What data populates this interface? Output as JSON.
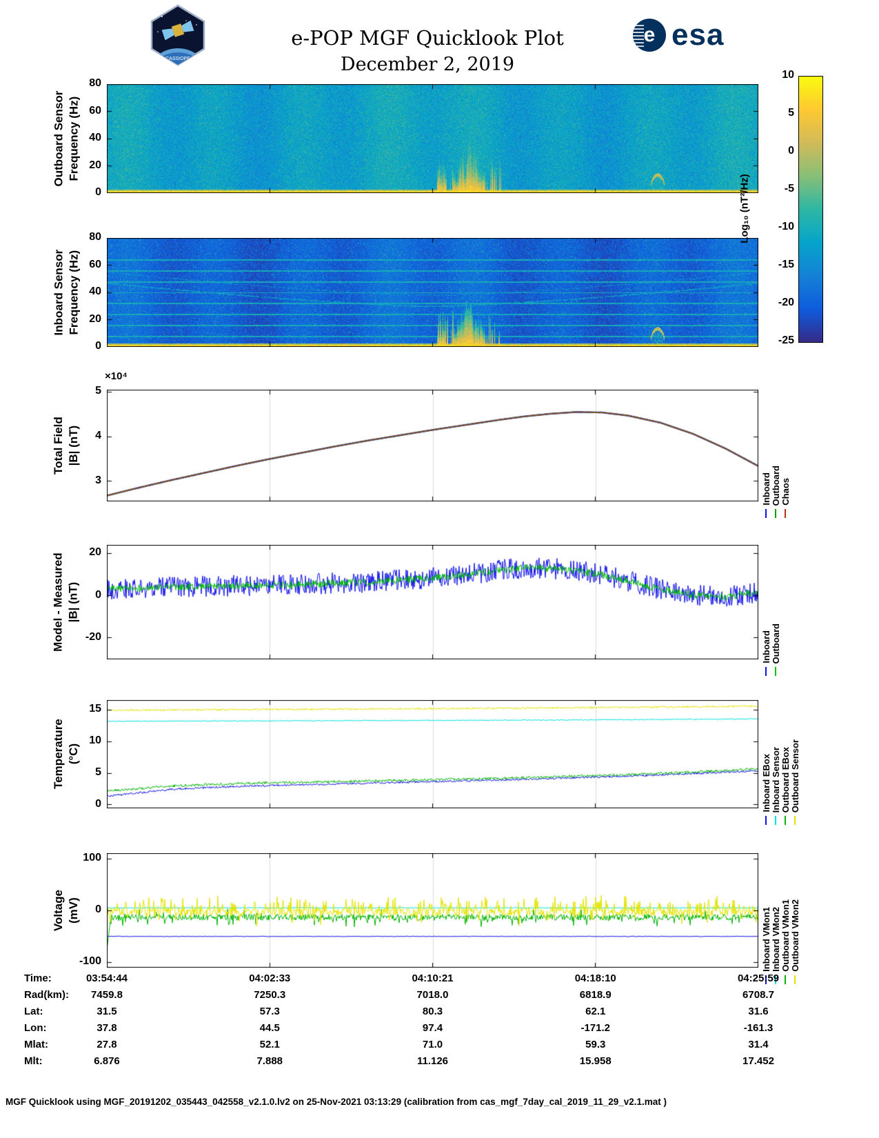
{
  "header": {
    "title": "e-POP MGF Quicklook Plot",
    "date": "December 2, 2019",
    "mission_logo_text": "CASSIOPE",
    "esa_logo_text": "esa",
    "esa_emblem_letter": "e"
  },
  "time_axis": {
    "tick_labels": [
      "03:54:44",
      "04:02:33",
      "04:10:21",
      "04:18:10",
      "04:25:59"
    ]
  },
  "colorbar": {
    "label": "Log₁₀ (nT²/Hz)",
    "ticks": [
      10,
      5,
      0,
      -5,
      -10,
      -15,
      -20,
      -25
    ],
    "colormap": "parula",
    "min": -25,
    "max": 10
  },
  "chart_data": [
    {
      "type": "heatmap",
      "name": "outboard_spectrogram",
      "ylabel": [
        "Outboard Sensor",
        "Frequency (Hz)"
      ],
      "ylim": [
        0,
        80
      ],
      "yticks": [
        0,
        20,
        40,
        60,
        80
      ],
      "value_scale": {
        "label": "Log₁₀ (nT²/Hz)",
        "min": -25,
        "max": 10
      },
      "features": {
        "background_db": -14,
        "low_freq_band_max_hz": 3,
        "burst_time_frac": 0.556,
        "burst_max_freq_hz": 45,
        "secondary_burst_frac": 0.513,
        "small_feature_frac": 0.845
      }
    },
    {
      "type": "heatmap",
      "name": "inboard_spectrogram",
      "ylabel": [
        "Inboard Sensor",
        "Frequency (Hz)"
      ],
      "ylim": [
        0,
        80
      ],
      "yticks": [
        0,
        20,
        40,
        60,
        80
      ],
      "value_scale": {
        "label": "Log₁₀ (nT²/Hz)",
        "min": -25,
        "max": 10
      },
      "interference_lines_hz": [
        8,
        16,
        24,
        32,
        40,
        48,
        56,
        64
      ],
      "features": {
        "background_db": -21,
        "low_freq_band_max_hz": 3,
        "burst_time_frac": 0.556,
        "burst_max_freq_hz": 45,
        "secondary_burst_frac": 0.513,
        "small_feature_frac": 0.845
      }
    },
    {
      "type": "line",
      "name": "total_field",
      "ylabel": [
        "Total Field",
        "|B| (nT)"
      ],
      "scale_label": "×10⁴",
      "y_units": "×10⁴ nT",
      "ylim": [
        2.55,
        5.05
      ],
      "yticks": [
        3,
        4,
        5
      ],
      "x": [
        0,
        0.05,
        0.1,
        0.15,
        0.2,
        0.25,
        0.3,
        0.35,
        0.4,
        0.45,
        0.5,
        0.55,
        0.6,
        0.64,
        0.68,
        0.72,
        0.76,
        0.8,
        0.85,
        0.9,
        0.95,
        1
      ],
      "y": [
        2.68,
        2.86,
        3.03,
        3.19,
        3.35,
        3.5,
        3.64,
        3.78,
        3.91,
        4.03,
        4.15,
        4.26,
        4.37,
        4.45,
        4.51,
        4.55,
        4.54,
        4.47,
        4.31,
        4.06,
        3.73,
        3.34
      ],
      "series": [
        {
          "name": "Inboard",
          "color": "#0f0fe8"
        },
        {
          "name": "Outboard",
          "color": "#00a000"
        },
        {
          "name": "Chaos",
          "color": "#b43214"
        }
      ],
      "note": "all three series overlap"
    },
    {
      "type": "line",
      "name": "model_minus_measured",
      "ylabel": [
        "Model - Measured",
        "|B| (nT)"
      ],
      "ylim": [
        -30,
        24
      ],
      "yticks": [
        -20,
        0,
        20
      ],
      "x": [
        0,
        0.08,
        0.16,
        0.24,
        0.32,
        0.4,
        0.48,
        0.54,
        0.6,
        0.65,
        0.7,
        0.75,
        0.8,
        0.85,
        0.9,
        0.95,
        1
      ],
      "y": [
        3,
        4,
        4.6,
        5,
        5.6,
        6.5,
        8,
        9.5,
        12,
        13.2,
        12.6,
        10.5,
        7,
        3,
        0.3,
        -0.6,
        1.8
      ],
      "series": [
        {
          "name": "Inboard",
          "color": "#0f0fe8",
          "noise_amp": 5
        },
        {
          "name": "Outboard",
          "color": "#00c000",
          "noise_amp": 1.7
        }
      ]
    },
    {
      "type": "line",
      "name": "temperature",
      "ylabel": [
        "Temperature",
        "(°C)"
      ],
      "ylim": [
        -0.5,
        16.5
      ],
      "yticks": [
        0,
        5,
        10,
        15
      ],
      "series": [
        {
          "name": "Inboard EBox",
          "color": "#0f0fe8",
          "noise_amp": 0.15,
          "x": [
            0,
            0.1,
            0.2,
            0.3,
            0.4,
            0.5,
            0.6,
            0.7,
            0.8,
            0.9,
            1
          ],
          "y": [
            1.4,
            2.5,
            2.95,
            3.2,
            3.45,
            3.7,
            3.95,
            4.25,
            4.55,
            4.95,
            5.4
          ]
        },
        {
          "name": "Inboard Sensor",
          "color": "#00e0e0",
          "noise_amp": 0.07,
          "x": [
            0,
            0.1,
            0.2,
            0.3,
            0.4,
            0.5,
            0.6,
            0.7,
            0.8,
            0.9,
            1
          ],
          "y": [
            13.15,
            13.2,
            13.22,
            13.25,
            13.28,
            13.3,
            13.33,
            13.37,
            13.42,
            13.47,
            13.55
          ]
        },
        {
          "name": "Outboard EBox",
          "color": "#00b400",
          "noise_amp": 0.2,
          "x": [
            0,
            0.1,
            0.2,
            0.3,
            0.4,
            0.5,
            0.6,
            0.7,
            0.8,
            0.9,
            1
          ],
          "y": [
            2.2,
            3.0,
            3.4,
            3.6,
            3.8,
            4.0,
            4.2,
            4.5,
            4.8,
            5.2,
            5.7
          ]
        },
        {
          "name": "Outboard Sensor",
          "color": "#e3e300",
          "noise_amp": 0.15,
          "x": [
            0,
            0.1,
            0.2,
            0.3,
            0.4,
            0.5,
            0.6,
            0.7,
            0.8,
            0.9,
            1
          ],
          "y": [
            14.85,
            14.95,
            15.0,
            15.05,
            15.1,
            15.15,
            15.2,
            15.28,
            15.35,
            15.45,
            15.55
          ]
        }
      ]
    },
    {
      "type": "line",
      "name": "voltage",
      "ylabel": [
        "Voltage",
        "(mV)"
      ],
      "ylim": [
        -110,
        110
      ],
      "yticks": [
        -100,
        0,
        100
      ],
      "series": [
        {
          "name": "Inboard VMon1",
          "color": "#0f0fe8",
          "y_const": -50,
          "noise_amp": 0.6
        },
        {
          "name": "Inboard VMon2",
          "color": "#00e0e0",
          "y_const": 5,
          "noise_amp": 0.8
        },
        {
          "name": "Outboard VMon1",
          "color": "#00b400",
          "y_const": -13,
          "noise_amp": 6,
          "spike_prob": 0.12,
          "spike_amp": 14,
          "spike_sign": -1,
          "start_spike": -75
        },
        {
          "name": "Outboard VMon2",
          "color": "#e3e300",
          "y_const": -3,
          "noise_amp": 8,
          "spike_prob": 0.35,
          "spike_amp": 26,
          "spike_sign": 1
        }
      ]
    }
  ],
  "table": {
    "rows": [
      {
        "label": "Time:",
        "values": [
          "03:54:44",
          "04:02:33",
          "04:10:21",
          "04:18:10",
          "04:25:59"
        ]
      },
      {
        "label": "Rad(km):",
        "values": [
          "7459.8",
          "7250.3",
          "7018.0",
          "6818.9",
          "6708.7"
        ]
      },
      {
        "label": "Lat:",
        "values": [
          "31.5",
          "57.3",
          "80.3",
          "62.1",
          "31.6"
        ]
      },
      {
        "label": "Lon:",
        "values": [
          "37.8",
          "44.5",
          "97.4",
          "-171.2",
          "-161.3"
        ]
      },
      {
        "label": "Mlat:",
        "values": [
          "27.8",
          "52.1",
          "71.0",
          "59.3",
          "31.4"
        ]
      },
      {
        "label": "Mlt:",
        "values": [
          "6.876",
          "7.888",
          "11.126",
          "15.958",
          "17.452"
        ]
      }
    ]
  },
  "footer": {
    "text": "MGF Quicklook using MGF_20191202_035443_042558_v2.1.0.lv2 on 25-Nov-2021 03:13:29 (calibration from cas_mgf_7day_cal_2019_11_29_v2.1.mat )"
  }
}
